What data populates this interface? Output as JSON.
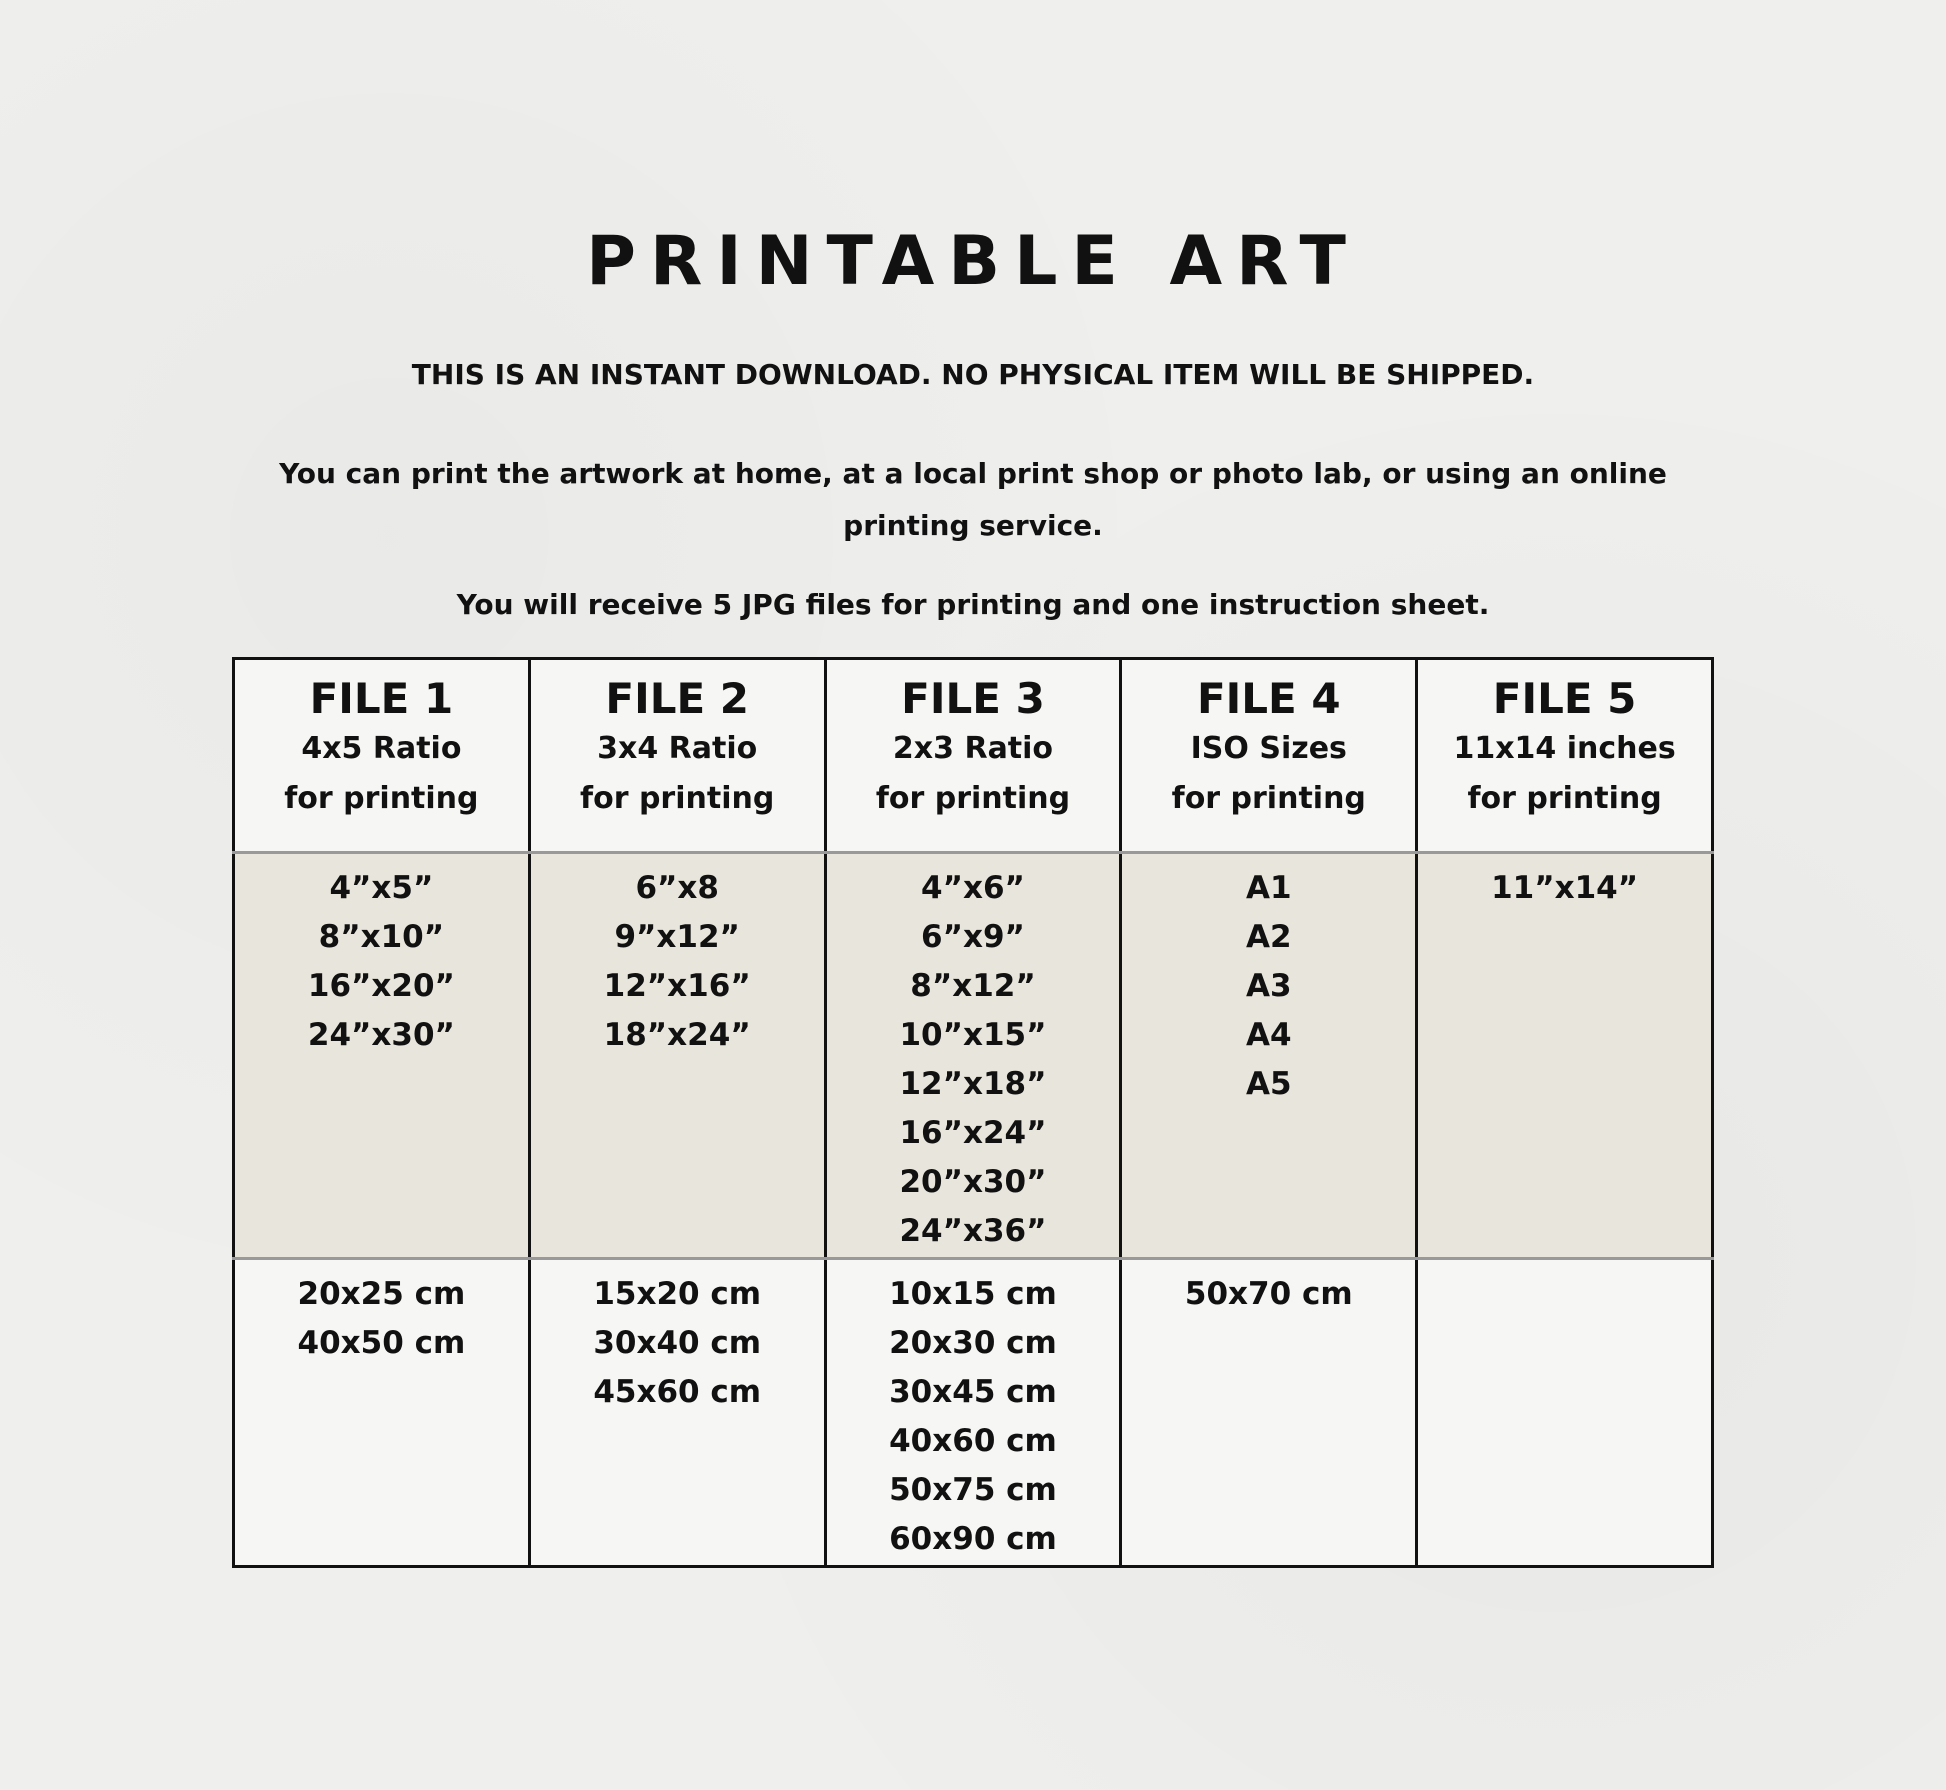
{
  "title": "PRINTABLE ART",
  "notice": "THIS IS AN INSTANT DOWNLOAD. NO PHYSICAL ITEM WILL BE SHIPPED.",
  "print_info": "You can print the artwork at home, at a local print shop or photo lab, or using an online printing service.",
  "receive_info": "You will receive 5 JPG files for printing and one instruction sheet.",
  "colors": {
    "background": "#efefed",
    "size_band": "#e8e5dc",
    "border": "#111111"
  },
  "files": [
    {
      "name": "FILE 1",
      "ratio": "4x5 Ratio",
      "purpose": "for printing",
      "inches": [
        "4”x5”",
        "8”x10”",
        "16”x20”",
        "24”x30”"
      ],
      "cm": [
        "20x25 cm",
        "40x50 cm"
      ]
    },
    {
      "name": "FILE 2",
      "ratio": "3x4 Ratio",
      "purpose": "for printing",
      "inches": [
        "6”x8",
        "9”x12”",
        "12”x16”",
        "18”x24”"
      ],
      "cm": [
        "15x20 cm",
        "30x40 cm",
        "45x60 cm"
      ]
    },
    {
      "name": "FILE 3",
      "ratio": "2x3 Ratio",
      "purpose": "for printing",
      "inches": [
        "4”x6”",
        "6”x9”",
        "8”x12”",
        "10”x15”",
        "12”x18”",
        "16”x24”",
        "20”x30”",
        "24”x36”"
      ],
      "cm": [
        "10x15 cm",
        "20x30 cm",
        "30x45 cm",
        "40x60 cm",
        "50x75 cm",
        "60x90 cm"
      ]
    },
    {
      "name": "FILE 4",
      "ratio": "ISO Sizes",
      "purpose": "for printing",
      "inches": [
        "A1",
        "A2",
        "A3",
        "A4",
        "A5"
      ],
      "cm": [
        "50x70 cm"
      ]
    },
    {
      "name": "FILE 5",
      "ratio": "11x14 inches",
      "purpose": "for printing",
      "inches": [
        "11”x14”"
      ],
      "cm": []
    }
  ]
}
